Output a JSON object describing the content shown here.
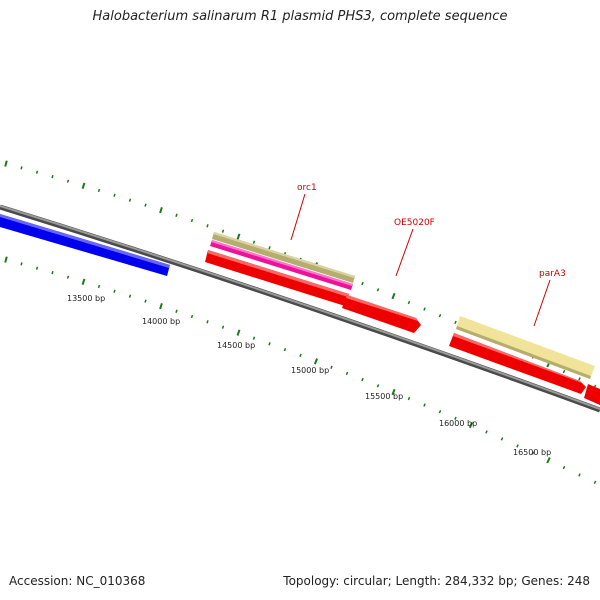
{
  "title": "Halobacterium salinarum R1 plasmid PHS3, complete sequence",
  "accession": "Accession: NC_010368",
  "summary": "Topology: circular; Length: 284,332 bp; Genes: 248",
  "colors": {
    "backbone": "#7a7a7a",
    "tick": "#1a7a1a",
    "reverse_gene": "#0000ee",
    "forward_gene": "#ee0000",
    "orc1_outer": "#b5ad6e",
    "orc1_inner": "#ee1199",
    "parA3": "#f2e39a",
    "label": "#cc0000"
  },
  "tick_labels": [
    "13500 bp",
    "14000 bp",
    "14500 bp",
    "15000 bp",
    "15500 bp",
    "16000 bp",
    "16500 bp"
  ],
  "gene_labels": [
    "orc1",
    "OE5020F",
    "parA3"
  ]
}
